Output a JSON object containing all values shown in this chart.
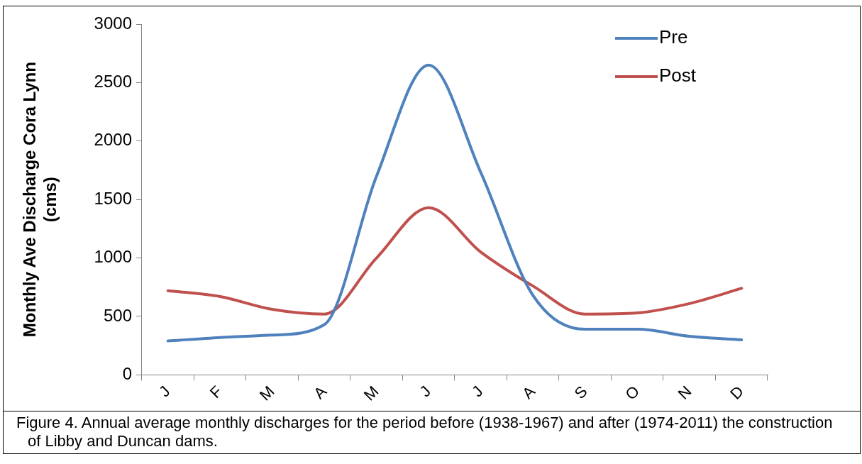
{
  "chart_data": {
    "type": "line",
    "ylabel": "Monthly Ave Discharge Cora Lynn\n(cms)",
    "categories": [
      "J",
      "F",
      "M",
      "A",
      "M",
      "J",
      "J",
      "A",
      "S",
      "O",
      "N",
      "D"
    ],
    "series": [
      {
        "name": "Pre",
        "color": "#4f81bd",
        "values": [
          290,
          320,
          340,
          430,
          1700,
          2650,
          1730,
          680,
          390,
          390,
          330,
          300
        ]
      },
      {
        "name": "Post",
        "color": "#c0504d",
        "values": [
          720,
          670,
          560,
          520,
          1000,
          1430,
          1050,
          760,
          520,
          530,
          610,
          740
        ]
      }
    ],
    "ylim": [
      0,
      3000
    ],
    "yticks": [
      0,
      500,
      1000,
      1500,
      2000,
      2500,
      3000
    ],
    "grid": false,
    "legend": "top right",
    "marker": "none",
    "line_style": "solid",
    "annotations": [
      "Figure 4.  Annual average monthly discharges for the period before (1938-1967) and after (1974-2011) the construction of Libby and Duncan dams."
    ]
  }
}
